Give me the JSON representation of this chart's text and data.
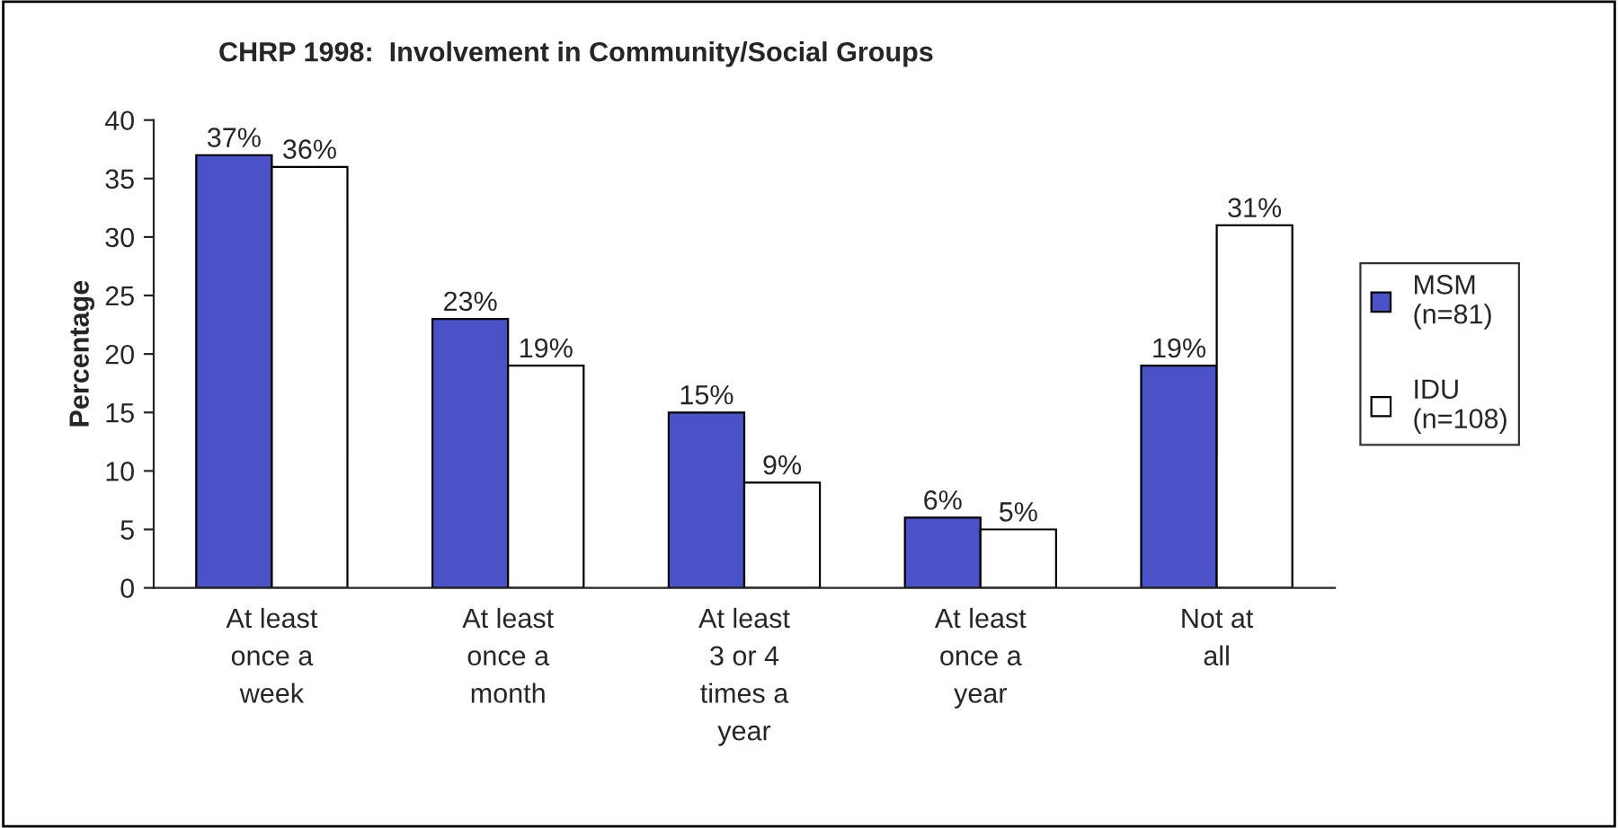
{
  "chart_data": {
    "type": "bar",
    "title": "CHRP 1998:  Involvement in Community/Social Groups",
    "ylabel": "Percentage",
    "categories": [
      "At least\nonce a\nweek",
      "At least\nonce a\nmonth",
      "At least\n3 or 4\ntimes a\nyear",
      "At least\nonce a\nyear",
      "Not at\nall"
    ],
    "series": [
      {
        "name": "MSM\n(n=81)",
        "color": "#4a52c8",
        "values": [
          37,
          23,
          15,
          6,
          19
        ],
        "value_labels": [
          "37%",
          "23%",
          "15%",
          "6%",
          "19%"
        ]
      },
      {
        "name": "IDU\n(n=108)",
        "color": "#ffffff",
        "values": [
          36,
          19,
          9,
          5,
          31
        ],
        "value_labels": [
          "36%",
          "19%",
          "9%",
          "5%",
          "31%"
        ]
      }
    ],
    "ylim": [
      0,
      40
    ],
    "yticks": [
      0,
      5,
      10,
      15,
      20,
      25,
      30,
      35,
      40
    ],
    "grid": false,
    "legend": "right"
  }
}
